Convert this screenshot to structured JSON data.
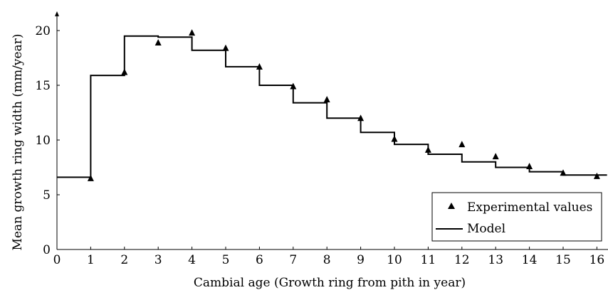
{
  "chart_data": {
    "type": "line",
    "xlabel": "Cambial age (Growth ring from pith in year)",
    "ylabel": "Mean growth ring width (mm/year)",
    "xlim": [
      0,
      16.3
    ],
    "ylim": [
      0,
      21.5
    ],
    "x_ticks": [
      0,
      1,
      2,
      3,
      4,
      5,
      6,
      7,
      8,
      9,
      10,
      11,
      12,
      13,
      14,
      15,
      16
    ],
    "y_ticks": [
      0,
      5,
      10,
      15,
      20
    ],
    "grid": false,
    "legend_position": "bottom-right",
    "series": [
      {
        "name": "Experimental values",
        "kind": "scatter",
        "marker": "triangle",
        "x": [
          1,
          2,
          3,
          4,
          5,
          6,
          7,
          8,
          9,
          10,
          11,
          12,
          13,
          14,
          15,
          16
        ],
        "y": [
          6.5,
          16.2,
          18.9,
          19.8,
          18.4,
          16.7,
          14.9,
          13.7,
          12.0,
          10.1,
          9.1,
          9.6,
          8.5,
          7.6,
          7.0,
          6.7
        ]
      },
      {
        "name": "Model",
        "kind": "step",
        "x": [
          0,
          1,
          2,
          3,
          4,
          5,
          6,
          7,
          8,
          9,
          10,
          11,
          12,
          13,
          14,
          15,
          16.3
        ],
        "y": [
          6.6,
          15.9,
          19.5,
          19.4,
          18.2,
          16.7,
          15.0,
          13.4,
          12.0,
          10.7,
          9.6,
          8.7,
          8.0,
          7.5,
          7.1,
          6.8,
          6.6
        ]
      }
    ]
  }
}
